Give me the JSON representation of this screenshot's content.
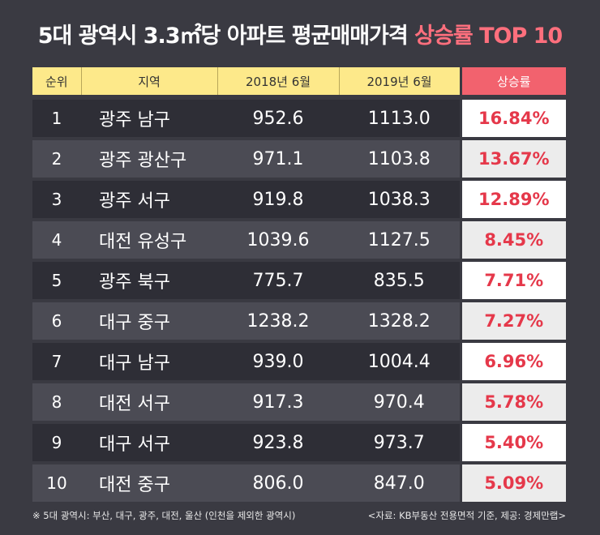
{
  "title": {
    "main": "5대 광역시 3.3㎡당 아파트 평균매매가격 ",
    "highlight": "상승률 TOP 10"
  },
  "chart_data": {
    "type": "table",
    "columns": [
      "순위",
      "지역",
      "2018년 6월",
      "2019년 6월",
      "상승률"
    ],
    "rows": [
      [
        "1",
        "광주 남구",
        "952.6",
        "1113.0",
        "16.84%"
      ],
      [
        "2",
        "광주 광산구",
        "971.1",
        "1103.8",
        "13.67%"
      ],
      [
        "3",
        "광주 서구",
        "919.8",
        "1038.3",
        "12.89%"
      ],
      [
        "4",
        "대전 유성구",
        "1039.6",
        "1127.5",
        "8.45%"
      ],
      [
        "5",
        "광주 북구",
        "775.7",
        "835.5",
        "7.71%"
      ],
      [
        "6",
        "대구 중구",
        "1238.2",
        "1328.2",
        "7.27%"
      ],
      [
        "7",
        "대구 남구",
        "939.0",
        "1004.4",
        "6.96%"
      ],
      [
        "8",
        "대전 서구",
        "917.3",
        "970.4",
        "5.78%"
      ],
      [
        "9",
        "대구 서구",
        "923.8",
        "973.7",
        "5.40%"
      ],
      [
        "10",
        "대전 중구",
        "806.0",
        "847.0",
        "5.09%"
      ]
    ]
  },
  "footer": {
    "note": "※ 5대 광역시: 부산, 대구, 광주, 대전, 울산 (인천을 제외한 광역시)",
    "source": "<자료: KB부동산 전용면적 기준, 제공: 경제만랩>"
  },
  "colors": {
    "background": "#3a3a42",
    "header": "#fde98a",
    "highlight": "#ff6f7d",
    "rate_text": "#e5384a"
  }
}
